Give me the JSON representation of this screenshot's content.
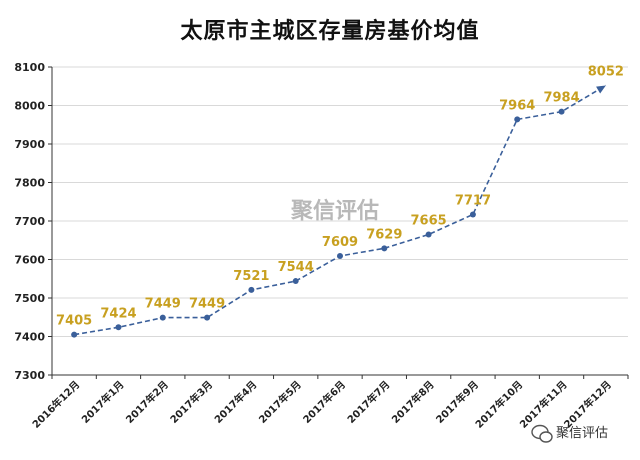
{
  "chart_data": {
    "type": "line",
    "title": "太原市主城区存量房基价均值",
    "categories": [
      "2016年12月",
      "2017年1月",
      "2017年2月",
      "2017年3月",
      "2017年4月",
      "2017年5月",
      "2017年6月",
      "2017年7月",
      "2017年8月",
      "2017年9月",
      "2017年10月",
      "2017年11月",
      "2017年12月"
    ],
    "series": [
      {
        "values": [
          7405,
          7424,
          7449,
          7449,
          7521,
          7544,
          7609,
          7629,
          7665,
          7717,
          7964,
          7984,
          8052
        ]
      }
    ],
    "ylim": [
      7300,
      8100
    ],
    "yticks": [
      7300,
      7400,
      7500,
      7600,
      7700,
      7800,
      7900,
      8000,
      8100
    ],
    "grid": true,
    "line_color": "#3a5f9a",
    "label_color": "#c8a020"
  },
  "watermark": {
    "center_text": "聚信评估",
    "corner_text": "聚信评估"
  }
}
